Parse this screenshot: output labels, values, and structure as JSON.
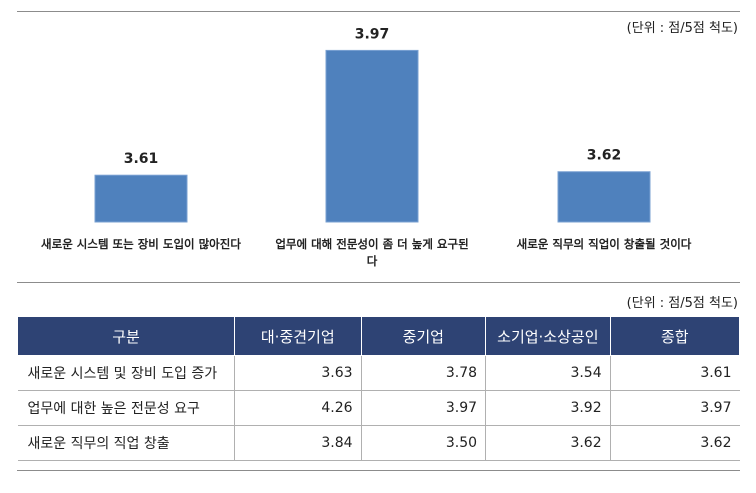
{
  "chart_data": {
    "type": "bar",
    "unit_note": "(단위 : 점/5점 척도)",
    "categories": [
      "새로운 시스템 또는 장비 도입이 많아진다",
      "업무에 대해 전문성이 좀 더 높게 요구된다",
      "새로운 직무의 직업이 창출될 것이다"
    ],
    "values": [
      3.61,
      3.97,
      3.62
    ],
    "color": "#4f81bd",
    "ylim": [
      3.475,
      4.0
    ]
  },
  "table": {
    "unit_note": "(단위 : 점/5점 척도)",
    "header": [
      "구분",
      "대·중견기업",
      "중기업",
      "소기업·소상공인",
      "종합"
    ],
    "rows": [
      [
        "새로운 시스템 및 장비 도입 증가",
        "3.63",
        "3.78",
        "3.54",
        "3.61"
      ],
      [
        "업무에 대한 높은 전문성 요구",
        "4.26",
        "3.97",
        "3.92",
        "3.97"
      ],
      [
        "새로운 직무의 직업 창출",
        "3.84",
        "3.50",
        "3.62",
        "3.62"
      ]
    ]
  }
}
